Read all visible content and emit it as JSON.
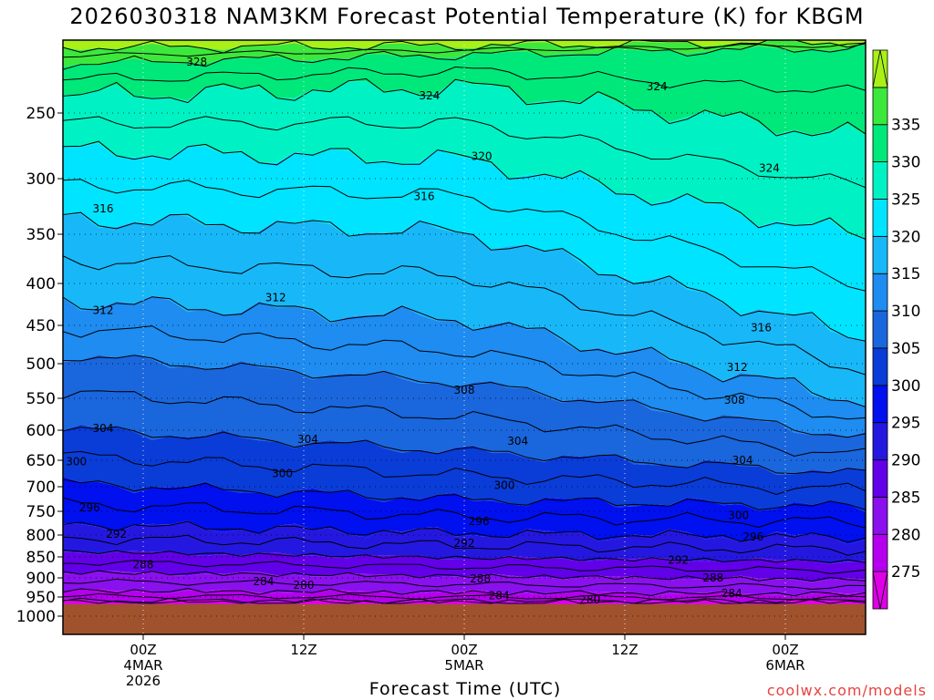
{
  "title": "2026030318 NAM3KM Forecast Potential Temperature (K) for KBGM",
  "credit": "coolwx.com/models",
  "chart_data": {
    "type": "heatmap",
    "title": "2026030318 NAM3KM Forecast Potential Temperature (K) for KBGM",
    "xlabel": "Forecast Time (UTC)",
    "ylabel": "",
    "y_axis": {
      "ticks": [
        250,
        300,
        350,
        400,
        450,
        500,
        550,
        600,
        650,
        700,
        750,
        800,
        850,
        900,
        950,
        1000
      ],
      "range": [
        1000,
        200
      ]
    },
    "x_axis": {
      "ticks": [
        {
          "hour": 6,
          "lines": [
            "00Z",
            "4MAR",
            "2026"
          ]
        },
        {
          "hour": 18,
          "lines": [
            "12Z"
          ]
        },
        {
          "hour": 30,
          "lines": [
            "00Z",
            "5MAR"
          ]
        },
        {
          "hour": 42,
          "lines": [
            "12Z"
          ]
        },
        {
          "hour": 54,
          "lines": [
            "00Z",
            "6MAR"
          ]
        }
      ],
      "range": [
        0,
        60
      ]
    },
    "colorbar": {
      "levels": [
        275,
        280,
        285,
        290,
        295,
        300,
        305,
        310,
        315,
        320,
        325,
        330,
        335
      ],
      "colors": [
        "#e000e8",
        "#b400ee",
        "#8a10ee",
        "#6200e8",
        "#2418e0",
        "#0010ee",
        "#0a3cd8",
        "#1a66dc",
        "#1e8cf0",
        "#18b8f8",
        "#00e4ff",
        "#00f2c4",
        "#00e87a",
        "#3ce83c",
        "#a8f018"
      ]
    },
    "contour_labels": [
      {
        "value": "328",
        "hour": 10,
        "p": 215
      },
      {
        "value": "324",
        "hour": 27.4,
        "p": 238
      },
      {
        "value": "324",
        "hour": 44.4,
        "p": 232
      },
      {
        "value": "320",
        "hour": 31.3,
        "p": 283
      },
      {
        "value": "324",
        "hour": 52.8,
        "p": 292
      },
      {
        "value": "316",
        "hour": 3,
        "p": 327
      },
      {
        "value": "316",
        "hour": 27,
        "p": 316
      },
      {
        "value": "312",
        "hour": 15.9,
        "p": 417
      },
      {
        "value": "312",
        "hour": 3,
        "p": 432
      },
      {
        "value": "316",
        "hour": 52.2,
        "p": 453
      },
      {
        "value": "312",
        "hour": 50.4,
        "p": 505
      },
      {
        "value": "308",
        "hour": 30,
        "p": 538
      },
      {
        "value": "308",
        "hour": 50.2,
        "p": 553
      },
      {
        "value": "304",
        "hour": 3,
        "p": 597
      },
      {
        "value": "304",
        "hour": 18.3,
        "p": 615
      },
      {
        "value": "304",
        "hour": 34,
        "p": 618
      },
      {
        "value": "304",
        "hour": 50.8,
        "p": 650
      },
      {
        "value": "300",
        "hour": 1,
        "p": 653
      },
      {
        "value": "300",
        "hour": 16.4,
        "p": 675
      },
      {
        "value": "300",
        "hour": 33,
        "p": 697
      },
      {
        "value": "296",
        "hour": 2,
        "p": 743
      },
      {
        "value": "296",
        "hour": 31.1,
        "p": 771
      },
      {
        "value": "300",
        "hour": 50.5,
        "p": 759
      },
      {
        "value": "296",
        "hour": 51.6,
        "p": 804
      },
      {
        "value": "292",
        "hour": 4,
        "p": 798
      },
      {
        "value": "292",
        "hour": 30,
        "p": 819
      },
      {
        "value": "292",
        "hour": 46,
        "p": 858
      },
      {
        "value": "288",
        "hour": 6,
        "p": 868
      },
      {
        "value": "288",
        "hour": 31.2,
        "p": 902
      },
      {
        "value": "288",
        "hour": 48.6,
        "p": 900
      },
      {
        "value": "284",
        "hour": 15,
        "p": 910
      },
      {
        "value": "280",
        "hour": 18,
        "p": 919
      },
      {
        "value": "284",
        "hour": 32.6,
        "p": 947
      },
      {
        "value": "280",
        "hour": 39.4,
        "p": 957
      },
      {
        "value": "284",
        "hour": 50,
        "p": 941
      }
    ],
    "grid": true
  },
  "colors": {
    "terrain": "#a0522d",
    "credit": "#e8433f"
  }
}
